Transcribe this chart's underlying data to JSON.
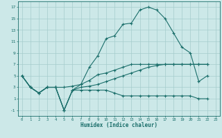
{
  "xlabel": "Humidex (Indice chaleur)",
  "bg_color": "#cce8e8",
  "grid_color": "#a4cccc",
  "line_color": "#1a6e6a",
  "xlim": [
    -0.5,
    23.5
  ],
  "ylim": [
    -2.0,
    18.0
  ],
  "xticks": [
    0,
    1,
    2,
    3,
    4,
    5,
    6,
    7,
    8,
    9,
    10,
    11,
    12,
    13,
    14,
    15,
    16,
    17,
    18,
    19,
    20,
    21,
    22,
    23
  ],
  "yticks": [
    -1,
    1,
    3,
    5,
    7,
    9,
    11,
    13,
    15,
    17
  ],
  "line1_x": [
    0,
    1,
    2,
    3,
    4,
    5,
    6,
    7,
    8,
    9,
    10,
    11,
    12,
    13,
    14,
    15,
    16,
    17,
    18,
    19,
    20,
    21,
    22
  ],
  "line1_y": [
    5,
    3,
    2,
    3,
    3,
    3,
    3.2,
    3.5,
    4.2,
    5.2,
    5.5,
    6.0,
    6.5,
    7.0,
    7.0,
    7.0,
    7.0,
    7.0,
    7.0,
    7.0,
    7.0,
    7.0,
    7.0
  ],
  "line2_x": [
    0,
    1,
    2,
    3,
    4,
    5,
    6,
    7,
    8,
    9,
    10,
    11,
    12,
    13,
    14,
    15,
    16,
    17,
    18,
    19,
    20,
    21,
    22
  ],
  "line2_y": [
    5,
    3,
    2,
    3,
    3,
    -1,
    2.5,
    3.5,
    6.5,
    8.5,
    11.5,
    12.0,
    14.0,
    14.2,
    16.5,
    17.0,
    16.5,
    15.0,
    12.5,
    10.0,
    9.0,
    4.0,
    5.0
  ],
  "line3_x": [
    0,
    1,
    2,
    3,
    4,
    5,
    6,
    7,
    8,
    9,
    10,
    11,
    12,
    13,
    14,
    15,
    16,
    17,
    18,
    19,
    20,
    21,
    22
  ],
  "line3_y": [
    5,
    3,
    2,
    3,
    3,
    -1,
    2.5,
    3.0,
    3.2,
    3.5,
    4.0,
    4.5,
    5.0,
    5.5,
    6.0,
    6.5,
    6.8,
    7.0,
    7.0,
    7.0,
    7.0,
    7.0,
    7.0
  ],
  "line4_x": [
    0,
    1,
    2,
    3,
    4,
    5,
    6,
    7,
    8,
    9,
    10,
    11,
    12,
    13,
    14,
    15,
    16,
    17,
    18,
    19,
    20,
    21,
    22
  ],
  "line4_y": [
    5,
    3,
    2,
    3,
    3,
    -1,
    2.5,
    2.5,
    2.5,
    2.5,
    2.5,
    2.0,
    1.5,
    1.5,
    1.5,
    1.5,
    1.5,
    1.5,
    1.5,
    1.5,
    1.5,
    1.0,
    1.0
  ]
}
